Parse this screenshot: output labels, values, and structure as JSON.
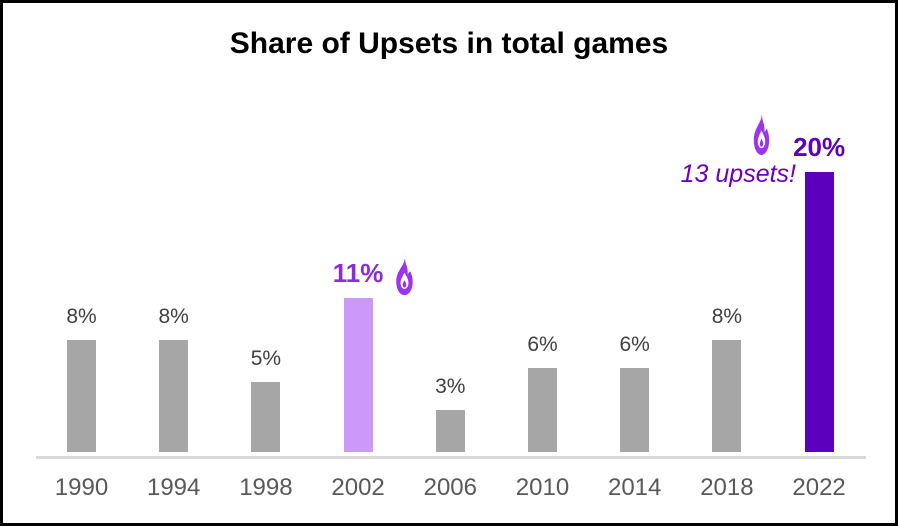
{
  "title": "Share of Upsets in total games",
  "annotations": {
    "note": "13 upsets!"
  },
  "icons": {
    "flame_2002": "flame-icon",
    "flame_2022": "flame-icon"
  },
  "colors": {
    "bar_default": "#a6a6a6",
    "bar_highlight_light": "#cc99fa",
    "bar_highlight_dark": "#5c00bd",
    "label_default": "#404040",
    "label_highlight_light": "#8a2be2",
    "label_highlight_dark": "#5c00bd",
    "note_text": "#6e00be",
    "flame": "#9c33f0",
    "flame_inner": "#ffffff",
    "axis_line": "#d9d9d9",
    "axis_text": "#595959",
    "title_text": "#000000"
  },
  "chart_data": {
    "type": "bar",
    "title": "Share of Upsets in total games",
    "xlabel": "",
    "ylabel": "",
    "ylim": [
      0,
      22
    ],
    "grid": false,
    "legend": "none",
    "categories": [
      "1990",
      "1994",
      "1998",
      "2002",
      "2006",
      "2010",
      "2014",
      "2018",
      "2022"
    ],
    "values": [
      8,
      8,
      5,
      11,
      3,
      6,
      6,
      8,
      20
    ],
    "points": [
      {
        "category": "1990",
        "value": 8,
        "label": "8%",
        "highlight": "none"
      },
      {
        "category": "1994",
        "value": 8,
        "label": "8%",
        "highlight": "none"
      },
      {
        "category": "1998",
        "value": 5,
        "label": "5%",
        "highlight": "none"
      },
      {
        "category": "2002",
        "value": 11,
        "label": "11%",
        "highlight": "light"
      },
      {
        "category": "2006",
        "value": 3,
        "label": "3%",
        "highlight": "none"
      },
      {
        "category": "2010",
        "value": 6,
        "label": "6%",
        "highlight": "none"
      },
      {
        "category": "2014",
        "value": 6,
        "label": "6%",
        "highlight": "none"
      },
      {
        "category": "2018",
        "value": 8,
        "label": "8%",
        "highlight": "none"
      },
      {
        "category": "2022",
        "value": 20,
        "label": "20%",
        "highlight": "dark"
      }
    ]
  }
}
